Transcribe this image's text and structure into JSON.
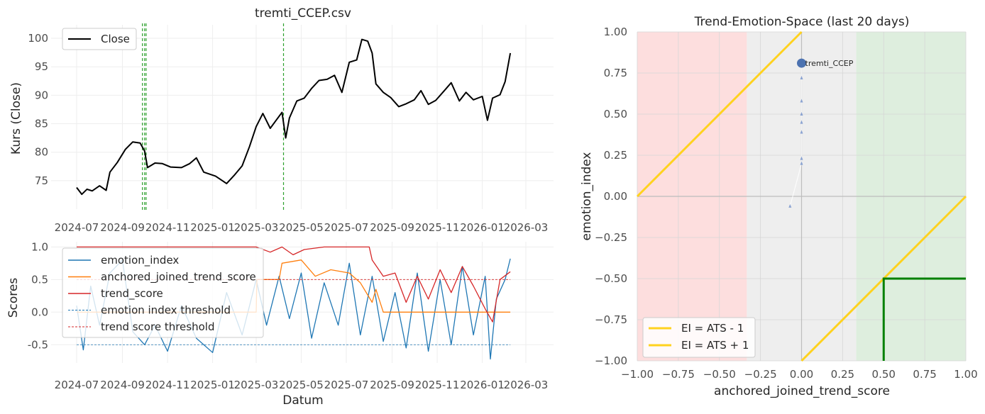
{
  "chart_data": [
    {
      "type": "line",
      "title": "tremti_CCEP.csv",
      "xlabel": "",
      "ylabel": "Kurs (Close)",
      "x_tick_labels": [
        "2024-07",
        "2024-09",
        "2024-11",
        "2025-01",
        "2025-03",
        "2025-05",
        "2025-07",
        "2025-09",
        "2025-11",
        "2026-01",
        "2026-03"
      ],
      "y_tick_labels": [
        "75",
        "80",
        "85",
        "90",
        "95",
        "100"
      ],
      "ylim": [
        71,
        101
      ],
      "xlim": [
        "2024-06-10",
        "2026-03-20"
      ],
      "grid": true,
      "legend_position": "upper left",
      "series": [
        {
          "name": "Close",
          "color": "#000000",
          "points": [
            [
              "2024-07-01",
              73.8
            ],
            [
              "2024-07-08",
              72.6
            ],
            [
              "2024-07-15",
              73.5
            ],
            [
              "2024-07-22",
              73.2
            ],
            [
              "2024-08-01",
              74.1
            ],
            [
              "2024-08-10",
              73.3
            ],
            [
              "2024-08-15",
              76.5
            ],
            [
              "2024-08-25",
              78.2
            ],
            [
              "2024-09-05",
              80.5
            ],
            [
              "2024-09-15",
              81.8
            ],
            [
              "2024-09-25",
              81.6
            ],
            [
              "2024-10-01",
              80.2
            ],
            [
              "2024-10-05",
              77.3
            ],
            [
              "2024-10-15",
              78.1
            ],
            [
              "2024-10-25",
              78.0
            ],
            [
              "2024-11-05",
              77.4
            ],
            [
              "2024-11-20",
              77.3
            ],
            [
              "2024-12-01",
              78.0
            ],
            [
              "2024-12-10",
              79.0
            ],
            [
              "2024-12-20",
              76.5
            ],
            [
              "2025-01-05",
              75.8
            ],
            [
              "2025-01-20",
              74.5
            ],
            [
              "2025-01-30",
              75.9
            ],
            [
              "2025-02-10",
              77.6
            ],
            [
              "2025-02-20",
              81.0
            ],
            [
              "2025-03-01",
              84.5
            ],
            [
              "2025-03-10",
              86.8
            ],
            [
              "2025-03-20",
              84.2
            ],
            [
              "2025-03-28",
              85.6
            ],
            [
              "2025-04-05",
              87.0
            ],
            [
              "2025-04-10",
              82.5
            ],
            [
              "2025-04-15",
              86.0
            ],
            [
              "2025-04-25",
              89.0
            ],
            [
              "2025-05-05",
              89.5
            ],
            [
              "2025-05-15",
              91.2
            ],
            [
              "2025-05-25",
              92.6
            ],
            [
              "2025-06-05",
              92.8
            ],
            [
              "2025-06-15",
              93.5
            ],
            [
              "2025-06-25",
              90.5
            ],
            [
              "2025-07-05",
              95.8
            ],
            [
              "2025-07-15",
              96.2
            ],
            [
              "2025-07-22",
              99.8
            ],
            [
              "2025-07-30",
              99.5
            ],
            [
              "2025-08-05",
              97.4
            ],
            [
              "2025-08-10",
              92.0
            ],
            [
              "2025-08-20",
              90.5
            ],
            [
              "2025-08-30",
              89.6
            ],
            [
              "2025-09-10",
              88.0
            ],
            [
              "2025-09-20",
              88.5
            ],
            [
              "2025-10-01",
              89.2
            ],
            [
              "2025-10-10",
              90.8
            ],
            [
              "2025-10-20",
              88.4
            ],
            [
              "2025-10-30",
              89.1
            ],
            [
              "2025-11-10",
              90.7
            ],
            [
              "2025-11-20",
              92.2
            ],
            [
              "2025-12-01",
              89.0
            ],
            [
              "2025-12-10",
              90.5
            ],
            [
              "2025-12-20",
              89.2
            ],
            [
              "2026-01-01",
              89.8
            ],
            [
              "2026-01-08",
              85.6
            ],
            [
              "2026-01-15",
              89.5
            ],
            [
              "2026-01-25",
              90.1
            ],
            [
              "2026-02-01",
              92.4
            ],
            [
              "2026-02-08",
              97.4
            ]
          ]
        }
      ],
      "vertical_markers": [
        "2024-09-28",
        "2024-10-01",
        "2024-10-03",
        "2025-04-07"
      ]
    },
    {
      "type": "line",
      "title": "",
      "xlabel": "Datum",
      "ylabel": "Scores",
      "x_tick_labels": [
        "2024-07",
        "2024-09",
        "2024-11",
        "2025-01",
        "2025-03",
        "2025-05",
        "2025-07",
        "2025-09",
        "2025-11",
        "2026-01",
        "2026-03"
      ],
      "y_tick_labels": [
        "-0.5",
        "0.0",
        "0.5",
        "1.0"
      ],
      "ylim": [
        -0.78,
        1.08
      ],
      "grid": true,
      "legend_position": "upper left",
      "series": [
        {
          "name": "emotion_index",
          "color": "#1f77b4",
          "points": [
            [
              "2024-07-01",
              0.1
            ],
            [
              "2024-07-10",
              -0.58
            ],
            [
              "2024-07-20",
              0.4
            ],
            [
              "2024-08-01",
              -0.2
            ],
            [
              "2024-08-15",
              0.6
            ],
            [
              "2024-09-01",
              0.8
            ],
            [
              "2024-09-15",
              -0.3
            ],
            [
              "2024-10-01",
              -0.5
            ],
            [
              "2024-10-15",
              -0.2
            ],
            [
              "2024-11-01",
              -0.6
            ],
            [
              "2024-11-20",
              0.1
            ],
            [
              "2024-12-10",
              -0.4
            ],
            [
              "2025-01-01",
              -0.62
            ],
            [
              "2025-01-20",
              0.3
            ],
            [
              "2025-02-10",
              -0.35
            ],
            [
              "2025-03-01",
              0.5
            ],
            [
              "2025-03-15",
              -0.2
            ],
            [
              "2025-04-01",
              0.55
            ],
            [
              "2025-04-15",
              -0.1
            ],
            [
              "2025-05-01",
              0.6
            ],
            [
              "2025-05-15",
              -0.4
            ],
            [
              "2025-06-01",
              0.45
            ],
            [
              "2025-06-20",
              -0.2
            ],
            [
              "2025-07-05",
              0.75
            ],
            [
              "2025-07-20",
              -0.35
            ],
            [
              "2025-08-05",
              0.55
            ],
            [
              "2025-08-20",
              -0.45
            ],
            [
              "2025-09-05",
              0.3
            ],
            [
              "2025-09-20",
              -0.55
            ],
            [
              "2025-10-05",
              0.6
            ],
            [
              "2025-10-20",
              -0.6
            ],
            [
              "2025-11-05",
              0.5
            ],
            [
              "2025-11-20",
              -0.5
            ],
            [
              "2025-12-05",
              0.7
            ],
            [
              "2025-12-20",
              -0.35
            ],
            [
              "2026-01-05",
              0.55
            ],
            [
              "2026-01-12",
              -0.72
            ],
            [
              "2026-01-20",
              0.2
            ],
            [
              "2026-02-01",
              0.5
            ],
            [
              "2026-02-08",
              0.82
            ]
          ]
        },
        {
          "name": "anchored_joined_trend_score",
          "color": "#ff7f0e",
          "points": [
            [
              "2024-07-01",
              0.0
            ],
            [
              "2025-03-01",
              0.0
            ],
            [
              "2025-03-02",
              0.5
            ],
            [
              "2025-04-01",
              0.5
            ],
            [
              "2025-04-05",
              0.75
            ],
            [
              "2025-05-01",
              0.8
            ],
            [
              "2025-05-20",
              0.55
            ],
            [
              "2025-06-10",
              0.65
            ],
            [
              "2025-07-05",
              0.6
            ],
            [
              "2025-07-20",
              0.45
            ],
            [
              "2025-08-05",
              0.15
            ],
            [
              "2025-08-10",
              0.35
            ],
            [
              "2025-08-20",
              0.0
            ],
            [
              "2026-02-08",
              0.0
            ]
          ]
        },
        {
          "name": "trend_score",
          "color": "#d62728",
          "points": [
            [
              "2024-07-01",
              1.0
            ],
            [
              "2025-03-01",
              1.0
            ],
            [
              "2025-03-20",
              0.92
            ],
            [
              "2025-04-05",
              1.0
            ],
            [
              "2025-04-20",
              0.88
            ],
            [
              "2025-05-05",
              0.96
            ],
            [
              "2025-06-01",
              1.0
            ],
            [
              "2025-08-01",
              1.0
            ],
            [
              "2025-08-05",
              0.8
            ],
            [
              "2025-08-20",
              0.55
            ],
            [
              "2025-09-05",
              0.6
            ],
            [
              "2025-09-20",
              0.15
            ],
            [
              "2025-10-05",
              0.55
            ],
            [
              "2025-10-20",
              0.2
            ],
            [
              "2025-11-05",
              0.65
            ],
            [
              "2025-11-20",
              0.3
            ],
            [
              "2025-12-05",
              0.7
            ],
            [
              "2025-12-20",
              0.4
            ],
            [
              "2026-01-05",
              0.05
            ],
            [
              "2026-01-15",
              -0.15
            ],
            [
              "2026-01-25",
              0.5
            ],
            [
              "2026-02-08",
              0.62
            ]
          ]
        },
        {
          "name": "emotion index threshold",
          "color": "#1f77b4",
          "dashed": true,
          "constant": -0.5
        },
        {
          "name": "trend score threshold",
          "color": "#d62728",
          "dashed": true,
          "constant": 0.5
        }
      ]
    },
    {
      "type": "scatter",
      "title": "Trend-Emotion-Space (last 20 days)",
      "xlabel": "anchored_joined_trend_score",
      "ylabel": "emotion_index",
      "xlim": [
        -1.0,
        1.0
      ],
      "ylim": [
        -1.0,
        1.0
      ],
      "x_tick_labels": [
        "−1.00",
        "−0.75",
        "−0.50",
        "−0.25",
        "0.00",
        "0.25",
        "0.50",
        "0.75",
        "1.00"
      ],
      "y_tick_labels": [
        "−1.00",
        "−0.75",
        "−0.50",
        "−0.25",
        "0.00",
        "0.25",
        "0.50",
        "0.75",
        "1.00"
      ],
      "grid": true,
      "legend_position": "lower left",
      "regions": [
        {
          "x_range": [
            -1.0,
            -0.333
          ],
          "color": "#fddede"
        },
        {
          "x_range": [
            -0.333,
            0.333
          ],
          "color": "#eeeeee"
        },
        {
          "x_range": [
            0.333,
            1.0
          ],
          "color": "#deeede"
        }
      ],
      "series": [
        {
          "name": "EI = ATS - 1",
          "color": "#ffd21f",
          "line": [
            [
              0.0,
              -1.0
            ],
            [
              1.0,
              0.0
            ]
          ]
        },
        {
          "name": "EI = ATS + 1",
          "color": "#ffd21f",
          "line": [
            [
              -1.0,
              0.0
            ],
            [
              0.0,
              1.0
            ]
          ]
        }
      ],
      "target_box": {
        "x": [
          0.5,
          1.0
        ],
        "y": [
          -1.0,
          -0.5
        ],
        "color": "#008000"
      },
      "trail": [
        [
          -0.07,
          -0.06
        ],
        [
          0.0,
          0.2
        ],
        [
          0.0,
          0.23
        ],
        [
          0.0,
          0.39
        ],
        [
          0.0,
          0.45
        ],
        [
          0.0,
          0.5
        ],
        [
          0.0,
          0.58
        ],
        [
          0.0,
          0.72
        ]
      ],
      "current_point": {
        "label": "tremti_CCEP",
        "x": 0.0,
        "y": 0.81,
        "color": "#4c72b0"
      }
    }
  ]
}
